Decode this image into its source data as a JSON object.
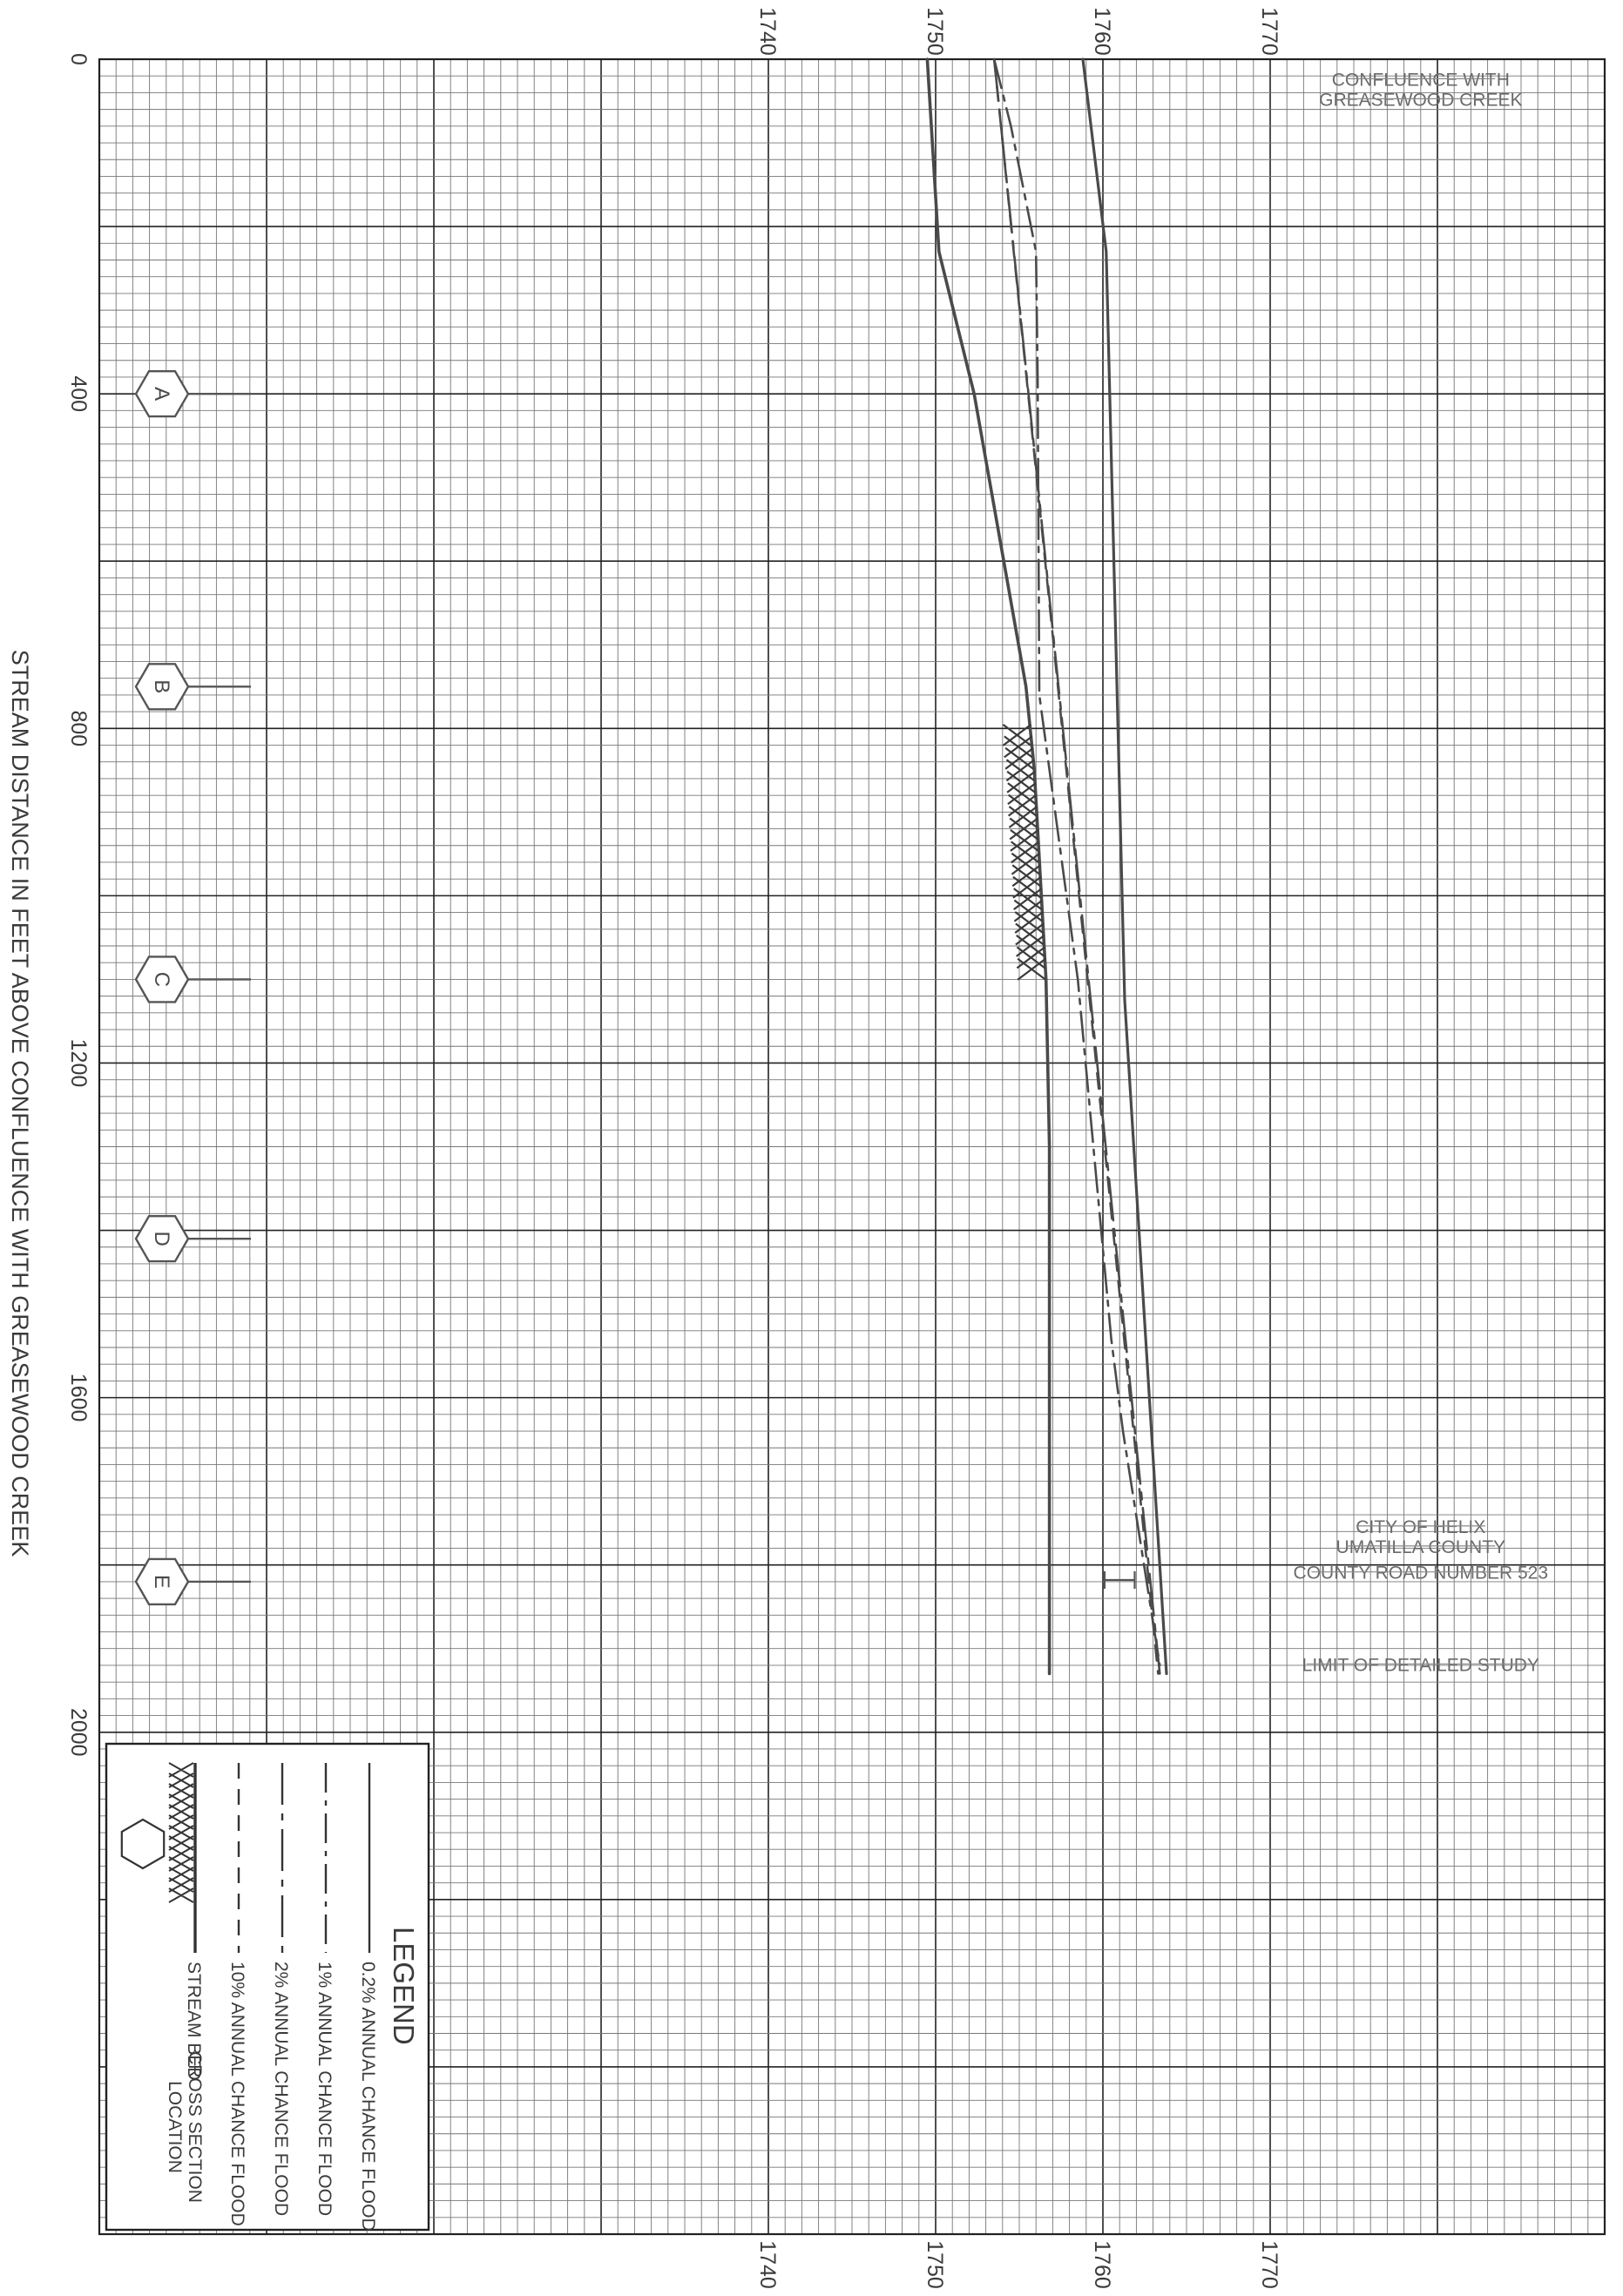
{
  "chart_data": {
    "type": "line",
    "xlabel": "STREAM DISTANCE IN FEET ABOVE CONFLUENCE WITH GREASEWOOD CREEK",
    "xlim": [
      0,
      2600
    ],
    "x_ticks": [
      "0",
      "400",
      "800",
      "1200",
      "1600",
      "2000"
    ],
    "ylim": [
      1700,
      1790
    ],
    "y_ticks": [
      "1740",
      "1750",
      "1760",
      "1770"
    ],
    "series": [
      {
        "name": "0.2% ANNUAL CHANCE FLOOD",
        "style": "solid",
        "x": [
          0,
          230,
          1125,
          1930
        ],
        "y": [
          1758.8,
          1760.2,
          1761.3,
          1763.8
        ]
      },
      {
        "name": "1% ANNUAL CHANCE FLOOD",
        "style": "dash-dot",
        "x": [
          0,
          80,
          230,
          380,
          760,
          1100,
          1530,
          1640,
          1920
        ],
        "y": [
          1753.5,
          1754.5,
          1756.0,
          1756.1,
          1756.2,
          1758.5,
          1760.5,
          1761.2,
          1763.4
        ]
      },
      {
        "name": "2% ANNUAL CHANCE FLOOD",
        "style": "dash-dot-long",
        "x": [
          0,
          1930
        ],
        "y": [
          1753.5,
          1763.4
        ]
      },
      {
        "name": "10% ANNUAL CHANCE FLOOD",
        "style": "dashed",
        "x": [
          0,
          1930
        ],
        "y": [
          1753.5,
          1763.3
        ]
      },
      {
        "name": "STREAM BED",
        "style": "solid-dark",
        "x": [
          0,
          230,
          400,
          750,
          850,
          1100,
          1300,
          1600,
          1930
        ],
        "y": [
          1749.5,
          1750.2,
          1752.3,
          1755.4,
          1755.9,
          1756.6,
          1756.8,
          1756.8,
          1756.8
        ]
      }
    ],
    "stream_bed_hatch": {
      "x_start": 810,
      "x_end": 1100
    },
    "cross_sections": [
      {
        "label": "A",
        "x": 400
      },
      {
        "label": "B",
        "x": 750
      },
      {
        "label": "C",
        "x": 1100
      },
      {
        "label": "D",
        "x": 1410
      },
      {
        "label": "E",
        "x": 1820
      }
    ],
    "annotations": [
      {
        "lines": [
          "CONFLUENCE WITH",
          "GREASEWOOD CREEK"
        ],
        "x": 15,
        "y_elev": 1779
      },
      {
        "lines": [
          "CITY OF HELIX",
          "UMATILLA COUNTY"
        ],
        "x": 1745,
        "y_elev": 1779
      },
      {
        "lines": [
          "COUNTY ROAD NUMBER 523"
        ],
        "x": 1800,
        "y_elev": 1779
      },
      {
        "lines": [
          "LIMIT OF DETAILED STUDY"
        ],
        "x": 1910,
        "y_elev": 1779
      }
    ],
    "structure_marker": {
      "x": 1818,
      "y_start": 1760.1,
      "y_end": 1761.9
    },
    "legend": {
      "title": "LEGEND",
      "placement": "bottom-left",
      "items": [
        {
          "label": "0.2% ANNUAL CHANCE FLOOD",
          "symbol": "solid"
        },
        {
          "label": "1% ANNUAL CHANCE FLOOD",
          "symbol": "dash-dot"
        },
        {
          "label": "2% ANNUAL CHANCE FLOOD",
          "symbol": "dash-dot-long"
        },
        {
          "label": "10% ANNUAL CHANCE FLOOD",
          "symbol": "dashed"
        },
        {
          "label": "STREAM BED",
          "symbol": "hatch"
        },
        {
          "label": "CROSS SECTION LOCATION",
          "symbol": "hexagon"
        }
      ]
    },
    "grid": true,
    "colors": {
      "line": "#4a4a4a",
      "grid_minor": "#777777",
      "grid_major": "#222222",
      "annotation": "#6a6a6a"
    }
  }
}
